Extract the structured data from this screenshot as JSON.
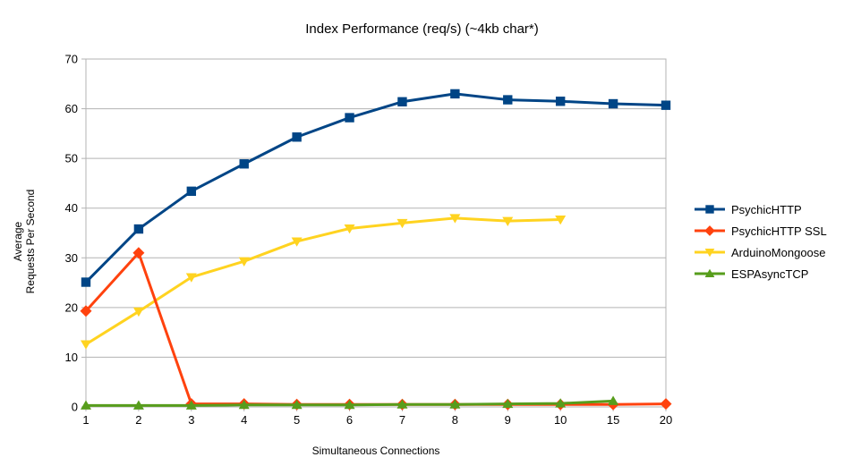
{
  "title": "Index Performance (req/s) (~4kb char*)",
  "chart_data": {
    "type": "line",
    "title": "Index Performance (req/s) (~4kb char*)",
    "xlabel": "Simultaneous Connections",
    "ylabel_lines": [
      "Average",
      "Requests Per Second"
    ],
    "categories": [
      "1",
      "2",
      "3",
      "4",
      "5",
      "6",
      "7",
      "8",
      "9",
      "10",
      "15",
      "20"
    ],
    "y_ticks": [
      0,
      10,
      20,
      30,
      40,
      50,
      60,
      70
    ],
    "ylim": [
      0,
      70
    ],
    "grid": "horizontal",
    "legend_position": "right",
    "series": [
      {
        "name": "PsychicHTTP",
        "color": "#004586",
        "marker": "square",
        "values": [
          25.1,
          35.8,
          43.4,
          48.9,
          54.3,
          58.2,
          61.4,
          63.0,
          61.8,
          61.5,
          61.0,
          60.7
        ]
      },
      {
        "name": "PsychicHTTP SSL",
        "color": "#FF420E",
        "marker": "diamond",
        "values": [
          19.3,
          31.0,
          0.6,
          0.6,
          0.5,
          0.5,
          0.5,
          0.5,
          0.5,
          0.5,
          0.5,
          0.6
        ]
      },
      {
        "name": "ArduinoMongoose",
        "color": "#FFD320",
        "marker": "triangle-down",
        "values": [
          12.6,
          19.2,
          26.1,
          29.3,
          33.3,
          35.9,
          37.0,
          38.0,
          37.4,
          37.7,
          null,
          null
        ]
      },
      {
        "name": "ESPAsyncTCP",
        "color": "#579D1C",
        "marker": "triangle-up",
        "values": [
          0.3,
          0.3,
          0.3,
          0.4,
          0.4,
          0.4,
          0.5,
          0.5,
          0.6,
          0.7,
          1.2,
          null
        ]
      }
    ]
  },
  "colors": {
    "grid": "#b3b3b3",
    "axis": "#b3b3b3",
    "text": "#000000",
    "background": "#ffffff"
  }
}
